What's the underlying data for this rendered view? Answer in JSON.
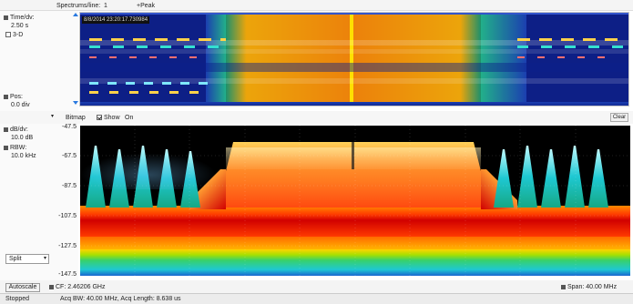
{
  "header": {
    "spectrums_per_line_label": "Spectrums/line:",
    "spectrums_per_line_value": "1",
    "detector": "+Peak"
  },
  "spectrogram_panel": {
    "time_div_label": "Time/dv:",
    "time_div_value": "2.50 s",
    "three_d_label": "3-D",
    "three_d_checked": false,
    "pos_label": "Pos:",
    "pos_value": "0.0 div",
    "timestamp": "8/8/2014 23:20:17.730984"
  },
  "spectrum_toolbar": {
    "bitmap_label": "Bitmap",
    "show_label": "Show",
    "show_checked": true,
    "on_label": "On",
    "clear_label": "Clear"
  },
  "spectrum_panel": {
    "db_div_label": "dB/dv:",
    "db_div_value": "10.0 dB",
    "rbw_label": "RBW:",
    "rbw_value": "10.0 kHz",
    "y_ticks": [
      "-47.5",
      "-67.5",
      "-87.5",
      "-107.5",
      "-127.5",
      "-147.5"
    ],
    "split_label": "Split"
  },
  "bottom": {
    "autoscale_label": "Autoscale",
    "cf_label": "CF: 2.46206 GHz",
    "span_label": "Span: 40.00 MHz"
  },
  "status": {
    "state": "Stopped",
    "acq_info": "Acq BW: 40.00 MHz, Acq Length: 8.638 us"
  },
  "colors": {
    "spectrogram_bg": "#0d1f86",
    "plot_bg": "#000000",
    "hot": "#ff8a00",
    "warm": "#ffd200",
    "mid": "#38d16a",
    "cool": "#1ec8d2"
  }
}
